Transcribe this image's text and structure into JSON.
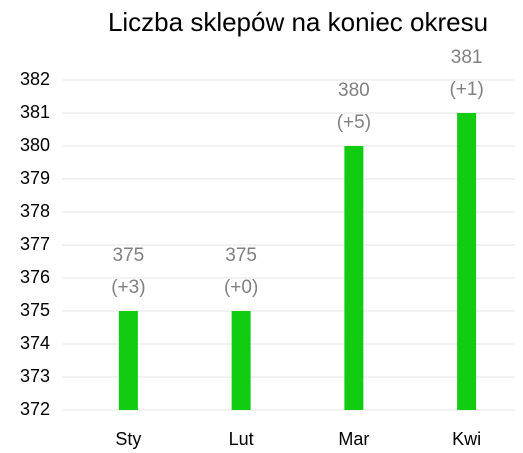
{
  "chart_data": {
    "type": "bar",
    "title": "Liczba sklepów na koniec okresu",
    "categories": [
      "Sty",
      "Lut",
      "Mar",
      "Kwi"
    ],
    "values": [
      375,
      375,
      380,
      381
    ],
    "value_labels": [
      [
        "375",
        "(+3)"
      ],
      [
        "375",
        "(+0)"
      ],
      [
        "380",
        "(+5)"
      ],
      [
        "381",
        "(+1)"
      ]
    ],
    "color": "#11cc11",
    "ylim": [
      372,
      382
    ],
    "yticks": [
      372,
      373,
      374,
      375,
      376,
      377,
      378,
      379,
      380,
      381,
      382
    ],
    "grid": true
  }
}
